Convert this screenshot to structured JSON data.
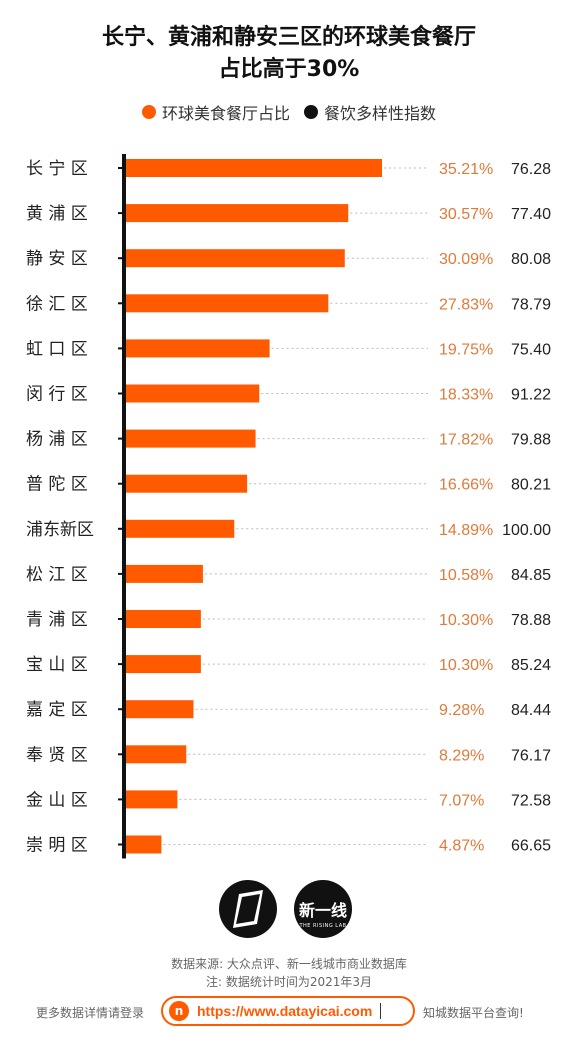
{
  "colors": {
    "accent": "#ff5a00",
    "dark": "#111111",
    "value_text": "#e07a3a"
  },
  "chart_data": {
    "type": "bar",
    "title": "长宁、黄浦和静安三区的环球美食餐厅占比高于30%",
    "title_lines": [
      "长宁、黄浦和静安三区的环球美食餐厅",
      "占比高于30%"
    ],
    "legend": [
      "环球美食餐厅占比",
      "餐饮多样性指数"
    ],
    "categories": [
      "长 宁 区",
      "黄 浦 区",
      "静 安 区",
      "徐 汇 区",
      "虹 口 区",
      "闵 行 区",
      "杨 浦 区",
      "普 陀 区",
      "浦东新区",
      "松 江 区",
      "青 浦 区",
      "宝 山 区",
      "嘉 定 区",
      "奉 贤 区",
      "金 山 区",
      "崇 明 区"
    ],
    "series": [
      {
        "name": "环球美食餐厅占比",
        "values": [
          35.21,
          30.57,
          30.09,
          27.83,
          19.75,
          18.33,
          17.82,
          16.66,
          14.89,
          10.58,
          10.3,
          10.3,
          9.28,
          8.29,
          7.07,
          4.87
        ],
        "labels": [
          "35.21%",
          "30.57%",
          "30.09%",
          "27.83%",
          "19.75%",
          "18.33%",
          "17.82%",
          "16.66%",
          "14.89%",
          "10.58%",
          "10.30%",
          "10.30%",
          "9.28%",
          "8.29%",
          "7.07%",
          "4.87%"
        ]
      },
      {
        "name": "餐饮多样性指数",
        "values": [
          76.28,
          77.4,
          80.08,
          78.79,
          75.4,
          91.22,
          79.88,
          80.21,
          100.0,
          84.85,
          78.88,
          85.24,
          84.44,
          76.17,
          72.58,
          66.65
        ],
        "labels": [
          "76.28",
          "77.40",
          "80.08",
          "78.79",
          "75.40",
          "91.22",
          "79.88",
          "80.21",
          "100.00",
          "84.85",
          "78.88",
          "85.24",
          "84.44",
          "76.17",
          "72.58",
          "66.65"
        ]
      }
    ],
    "xlim": [
      0,
      35.21
    ],
    "grid": false,
    "legend_position": "top"
  },
  "logos": {
    "right_main": "新一线",
    "right_sub": "THE RISING LAB"
  },
  "source": {
    "line1": "数据来源: 大众点评、新一线城市商业数据库",
    "line2": "注: 数据统计时间为2021年3月"
  },
  "footer": {
    "left": "更多数据详情请登录",
    "url_icon": "n",
    "url": "https://www.datayicai.com",
    "right": "知城数据平台查询!"
  }
}
